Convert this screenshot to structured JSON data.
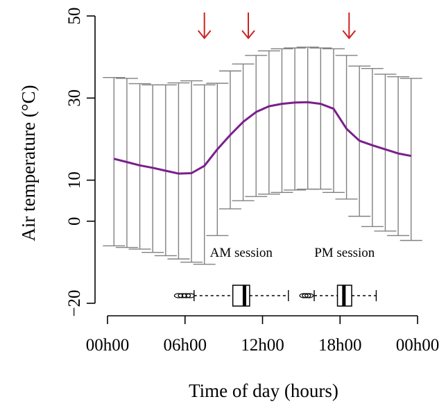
{
  "chart_data": {
    "type": "line",
    "xlabel": "Time of day (hours)",
    "ylabel": "Air temperature (°C)",
    "ylim": [
      -20,
      50
    ],
    "yticks": [
      -20,
      0,
      10,
      30,
      50
    ],
    "ytick_labels": [
      "−20",
      "0",
      "10",
      "30",
      "50"
    ],
    "xlim": [
      0,
      24
    ],
    "xticks": [
      0,
      6,
      12,
      18,
      24
    ],
    "xtick_labels": [
      "00h00",
      "06h00",
      "12h00",
      "18h00",
      "00h00"
    ],
    "series": [
      {
        "color": "#7b1f8c",
        "x": [
          0,
          1,
          2,
          3,
          4,
          5,
          6,
          7,
          8,
          9,
          10,
          11,
          12,
          13,
          14,
          15,
          16,
          17,
          18,
          19,
          20,
          21,
          22,
          23
        ],
        "mean": [
          15.2,
          14.4,
          13.6,
          13.0,
          12.3,
          11.6,
          11.7,
          13.5,
          17.5,
          21.0,
          24.2,
          26.6,
          28.0,
          28.6,
          28.9,
          29.0,
          28.6,
          27.4,
          22.5,
          19.6,
          18.5,
          17.5,
          16.5,
          15.9
        ],
        "upper": [
          35.0,
          34.8,
          33.5,
          33.2,
          33.2,
          33.7,
          34.2,
          33.2,
          33.6,
          36.6,
          38.3,
          40.4,
          41.5,
          42.0,
          42.2,
          42.4,
          42.2,
          42.0,
          40.4,
          37.8,
          37.2,
          35.8,
          35.2,
          34.8
        ],
        "lower": [
          -6.0,
          -6.4,
          -6.8,
          -7.6,
          -8.4,
          -9.2,
          -10.0,
          -10.5,
          -3.5,
          3.0,
          5.0,
          6.0,
          6.6,
          7.0,
          7.6,
          7.8,
          7.8,
          7.0,
          5.4,
          1.2,
          -1.3,
          -2.4,
          -3.5,
          -4.7
        ]
      }
    ],
    "arrows": {
      "color": "#cc2222",
      "x": [
        7.5,
        10.9,
        18.7
      ]
    },
    "boxplots": [
      {
        "label": "AM session",
        "whisker_low": 6.7,
        "q1": 9.7,
        "median": 10.6,
        "q3": 11.0,
        "whisker_high": 14.0,
        "outliers": [
          5.5,
          5.8,
          6.1,
          6.4,
          15.4
        ]
      },
      {
        "label": "PM session",
        "whisker_low": 16.0,
        "q1": 17.8,
        "median": 18.3,
        "q3": 18.9,
        "whisker_high": 20.8,
        "outliers": [
          15.2,
          15.6
        ]
      }
    ]
  }
}
